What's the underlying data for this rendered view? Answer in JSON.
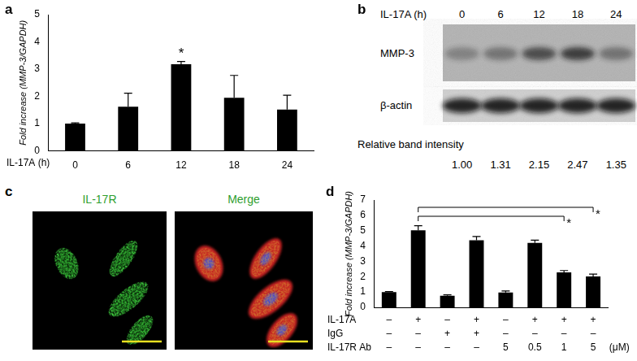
{
  "chart_data": [
    {
      "panel": "a",
      "type": "bar",
      "y_label": "Fold increase (MMP-3/GAPDH)",
      "x_label": "IL-17A (h)",
      "categories": [
        "0",
        "6",
        "12",
        "18",
        "24"
      ],
      "values": [
        1.0,
        1.62,
        3.18,
        1.95,
        1.52
      ],
      "errors": [
        0.03,
        0.5,
        0.1,
        0.82,
        0.52
      ],
      "color": "#000000",
      "ylim": [
        0,
        5
      ],
      "yticks": [
        0,
        1,
        2,
        3,
        4,
        5
      ],
      "grid": false,
      "annotations": [
        {
          "text": "*",
          "category": "12"
        }
      ]
    },
    {
      "panel": "d",
      "type": "bar",
      "y_label": "Fold increase (MMP-3/GAPDH)",
      "categories": [
        null,
        null,
        null,
        null,
        null,
        null,
        null,
        null
      ],
      "values": [
        1.0,
        5.02,
        0.75,
        4.37,
        0.97,
        4.2,
        2.28,
        2.02
      ],
      "errors": [
        0.03,
        0.3,
        0.07,
        0.25,
        0.1,
        0.18,
        0.12,
        0.15
      ],
      "color": "#000000",
      "ylim": [
        0,
        7
      ],
      "yticks": [
        0,
        1,
        2,
        3,
        4,
        5,
        6,
        7
      ],
      "grid": false,
      "tick_labels": "y",
      "conditions": [
        {
          "name": "IL-17A",
          "values": [
            "–",
            "+",
            "–",
            "+",
            "–",
            "+",
            "+",
            "+"
          ]
        },
        {
          "name": "IgG",
          "values": [
            "–",
            "–",
            "+",
            "+",
            "–",
            "–",
            "–",
            "–"
          ]
        },
        {
          "name": "IL-17R Ab",
          "values": [
            "–",
            "–",
            "–",
            "–",
            "5",
            "0.5",
            "1",
            "5"
          ],
          "unit": "(μM)"
        }
      ],
      "brackets": [
        {
          "text": "*",
          "from": 1,
          "to": 6
        },
        {
          "text": "*",
          "from": 1,
          "to": 7
        }
      ]
    }
  ],
  "blot": {
    "panel": "b",
    "treatment": "IL-17A (h)",
    "lanes": [
      "0",
      "6",
      "12",
      "18",
      "24"
    ],
    "rows": [
      "MMP-3",
      "β-actin"
    ],
    "quantification": {
      "label": "Relative band intensity",
      "values": [
        "1.00",
        "1.31",
        "2.15",
        "2.47",
        "1.35"
      ]
    }
  },
  "microscopy": {
    "panel": "c",
    "images": [
      "IL-17R",
      "Merge"
    ]
  }
}
